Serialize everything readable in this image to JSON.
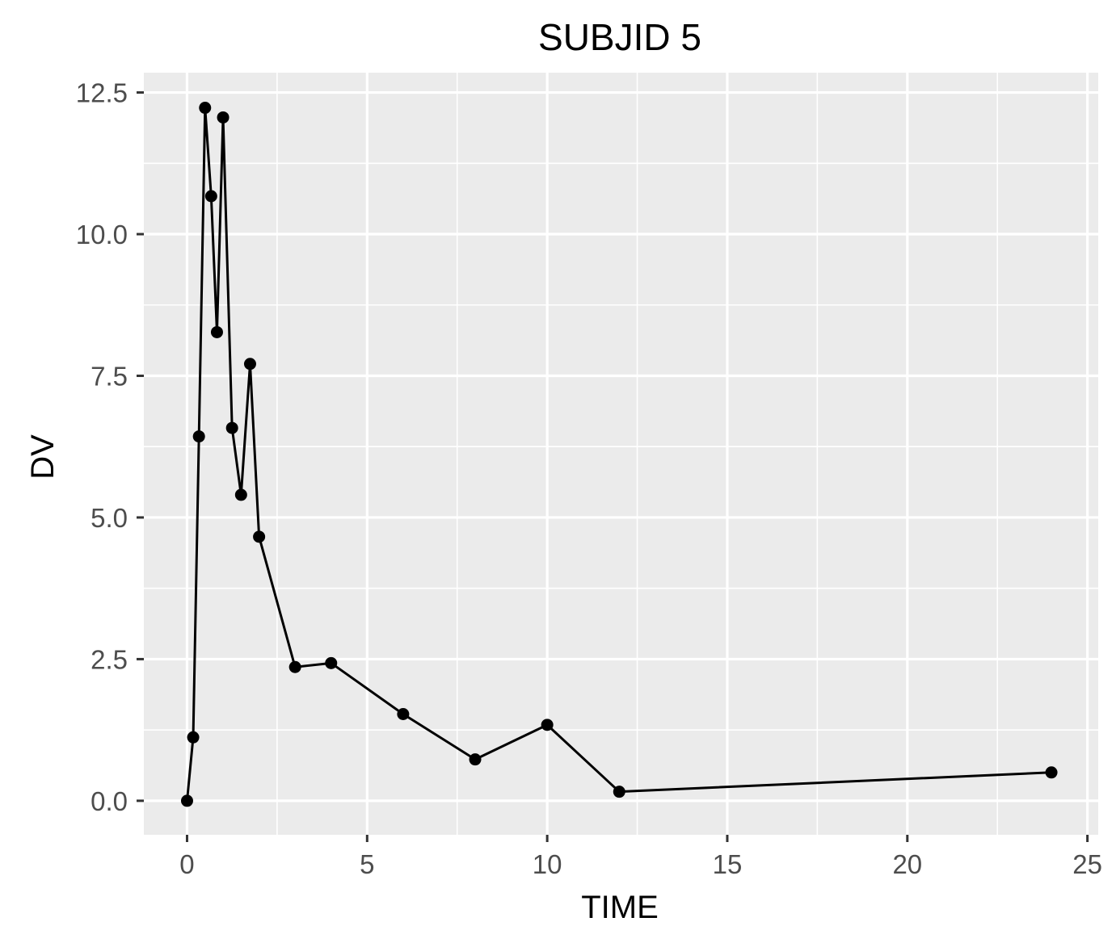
{
  "chart_data": {
    "type": "line",
    "title": "SUBJID 5",
    "xlabel": "TIME",
    "ylabel": "DV",
    "xlim": [
      -1.2,
      25.3
    ],
    "ylim": [
      -0.6,
      12.85
    ],
    "x_ticks": [
      0,
      5,
      10,
      15,
      20,
      25
    ],
    "x_tick_labels": [
      "0",
      "5",
      "10",
      "15",
      "20",
      "25"
    ],
    "x_minor_ticks": [
      2.5,
      7.5,
      12.5,
      17.5,
      22.5
    ],
    "y_ticks": [
      0,
      2.5,
      5,
      7.5,
      10,
      12.5
    ],
    "y_tick_labels": [
      "0.0",
      "2.5",
      "5.0",
      "7.5",
      "10.0",
      "12.5"
    ],
    "y_minor_ticks": [
      1.25,
      3.75,
      6.25,
      8.75,
      11.25
    ],
    "grid": true,
    "legend": "none",
    "colors": {
      "panel": "#ebebeb",
      "grid": "#ffffff",
      "series": "#000000",
      "tick_label": "#4d4d4d"
    },
    "series": [
      {
        "x": [
          0,
          0.17,
          0.33,
          0.5,
          0.67,
          0.83,
          1,
          1.25,
          1.5,
          1.75,
          2,
          3,
          4,
          6,
          8,
          10,
          12,
          24
        ],
        "y": [
          0.0,
          1.12,
          6.43,
          12.23,
          10.67,
          8.27,
          12.06,
          6.58,
          5.4,
          7.71,
          4.66,
          2.36,
          2.43,
          1.53,
          0.73,
          1.34,
          0.16,
          0.5
        ]
      }
    ]
  }
}
